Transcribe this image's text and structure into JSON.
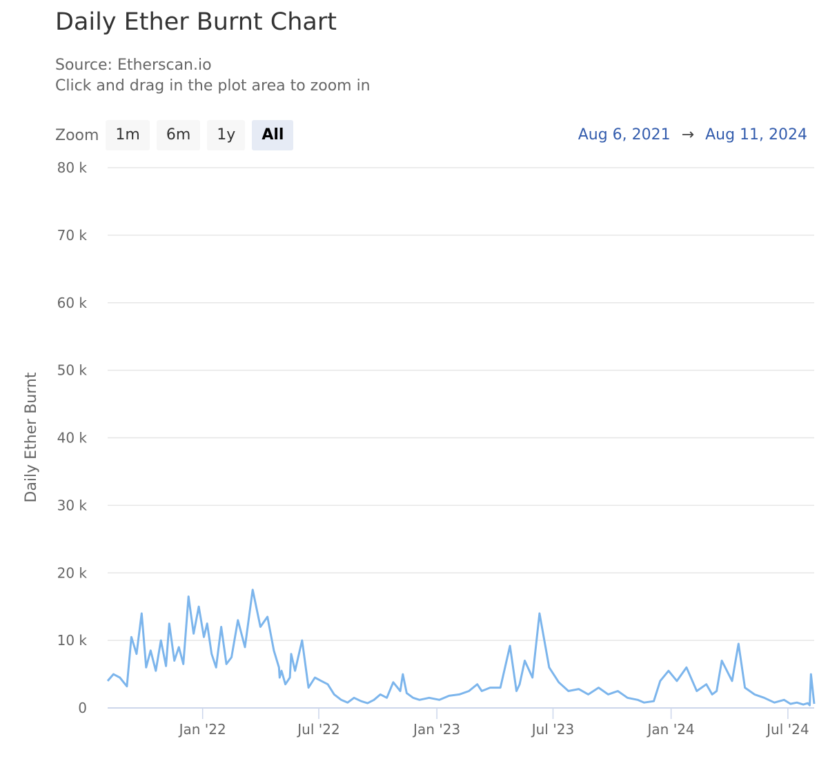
{
  "header": {
    "title": "Daily Ether Burnt Chart",
    "source": "Source: Etherscan.io",
    "hint": "Click and drag in the plot area to zoom in"
  },
  "zoom": {
    "label": "Zoom",
    "buttons": [
      "1m",
      "6m",
      "1y",
      "All"
    ],
    "active": "All"
  },
  "range": {
    "from": "Aug 6, 2021",
    "arrow": "→",
    "to": "Aug 11, 2024"
  },
  "chart_data": {
    "type": "line",
    "title": "Daily Ether Burnt Chart",
    "ylabel": "Daily Ether Burnt",
    "xlabel": "",
    "ylim": [
      0,
      80000
    ],
    "xlim": [
      "2021-08-06",
      "2024-08-11"
    ],
    "grid": true,
    "line_color": "#7cb5ec",
    "y_ticks": [
      0,
      10000,
      20000,
      30000,
      40000,
      50000,
      60000,
      70000,
      80000
    ],
    "y_tick_labels": [
      "0",
      "10 k",
      "20 k",
      "30 k",
      "40 k",
      "50 k",
      "60 k",
      "70 k",
      "80 k"
    ],
    "x_ticks": [
      "2022-01-01",
      "2022-07-01",
      "2023-01-01",
      "2023-07-01",
      "2024-01-01",
      "2024-07-01"
    ],
    "x_tick_labels": [
      "Jan '22",
      "Jul '22",
      "Jan '23",
      "Jul '23",
      "Jan '24",
      "Jul '24"
    ],
    "series": [
      {
        "x": [
          "2021-08-06",
          "2021-08-15",
          "2021-08-25",
          "2021-09-05",
          "2021-09-12",
          "2021-09-20",
          "2021-09-28",
          "2021-10-05",
          "2021-10-12",
          "2021-10-20",
          "2021-10-28",
          "2021-11-05",
          "2021-11-10",
          "2021-11-18",
          "2021-11-25",
          "2021-12-02",
          "2021-12-10",
          "2021-12-18",
          "2021-12-26",
          "2022-01-03",
          "2022-01-08",
          "2022-01-15",
          "2022-01-22",
          "2022-01-30",
          "2022-02-07",
          "2022-02-15",
          "2022-02-25",
          "2022-03-08",
          "2022-03-20",
          "2022-04-01",
          "2022-04-12",
          "2022-04-22",
          "2022-04-30",
          "2022-05-01",
          "2022-05-04",
          "2022-05-10",
          "2022-05-17",
          "2022-05-19",
          "2022-05-25",
          "2022-06-05",
          "2022-06-15",
          "2022-06-25",
          "2022-07-05",
          "2022-07-15",
          "2022-07-25",
          "2022-08-05",
          "2022-08-15",
          "2022-08-25",
          "2022-09-05",
          "2022-09-15",
          "2022-09-25",
          "2022-10-05",
          "2022-10-15",
          "2022-10-25",
          "2022-11-05",
          "2022-11-09",
          "2022-11-15",
          "2022-11-25",
          "2022-12-05",
          "2022-12-20",
          "2023-01-05",
          "2023-01-20",
          "2023-02-05",
          "2023-02-20",
          "2023-03-05",
          "2023-03-12",
          "2023-03-25",
          "2023-04-10",
          "2023-04-25",
          "2023-05-05",
          "2023-05-10",
          "2023-05-18",
          "2023-05-30",
          "2023-06-10",
          "2023-06-25",
          "2023-07-10",
          "2023-07-25",
          "2023-08-10",
          "2023-08-25",
          "2023-09-10",
          "2023-09-25",
          "2023-10-10",
          "2023-10-25",
          "2023-11-10",
          "2023-11-20",
          "2023-12-05",
          "2023-12-15",
          "2023-12-28",
          "2024-01-10",
          "2024-01-25",
          "2024-02-10",
          "2024-02-25",
          "2024-03-05",
          "2024-03-12",
          "2024-03-20",
          "2024-04-05",
          "2024-04-15",
          "2024-04-25",
          "2024-05-10",
          "2024-05-25",
          "2024-06-10",
          "2024-06-25",
          "2024-07-05",
          "2024-07-15",
          "2024-07-25",
          "2024-08-01",
          "2024-08-04",
          "2024-08-06",
          "2024-08-11"
        ],
        "y": [
          4000,
          5000,
          4500,
          3200,
          10500,
          8000,
          14000,
          6000,
          8500,
          5500,
          10000,
          6200,
          12500,
          7000,
          9000,
          6500,
          16500,
          11000,
          15000,
          10500,
          12500,
          8000,
          6000,
          12000,
          6500,
          7500,
          13000,
          9000,
          17500,
          12000,
          13500,
          8500,
          6000,
          4500,
          5500,
          3500,
          4500,
          8000,
          5500,
          10000,
          3000,
          4500,
          4000,
          3500,
          2000,
          1200,
          800,
          1500,
          1000,
          700,
          1200,
          2000,
          1500,
          3800,
          2500,
          5000,
          2200,
          1500,
          1200,
          1500,
          1200,
          1800,
          2000,
          2500,
          3500,
          2500,
          3000,
          3000,
          9200,
          2500,
          3500,
          7000,
          4500,
          14000,
          6000,
          3800,
          2500,
          2800,
          2000,
          3000,
          2000,
          2500,
          1500,
          1200,
          800,
          1000,
          4000,
          5500,
          4000,
          6000,
          2500,
          3500,
          2000,
          2500,
          7000,
          4000,
          9500,
          3000,
          2000,
          1500,
          800,
          1200,
          600,
          800,
          500,
          700,
          400,
          5000,
          600
        ]
      }
    ]
  }
}
